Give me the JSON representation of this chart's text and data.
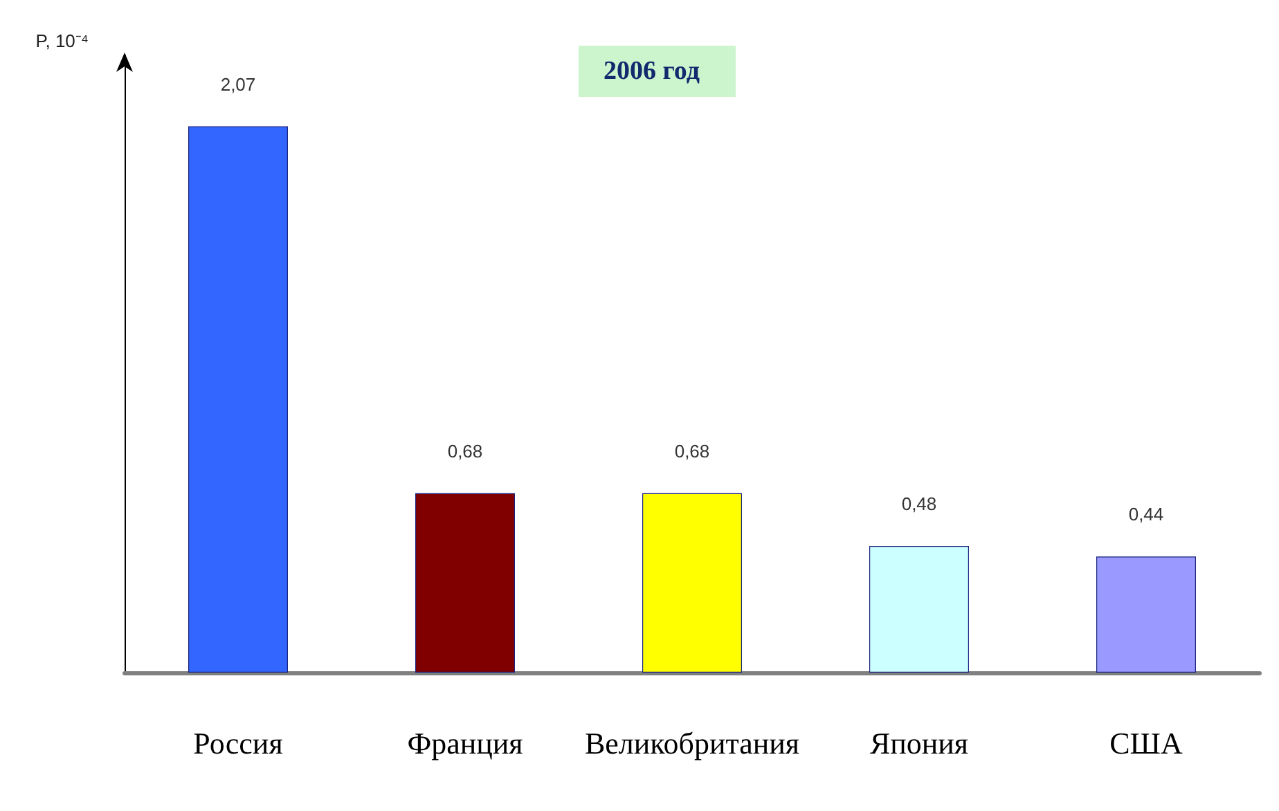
{
  "chart_data": {
    "type": "bar",
    "title": "2006 год",
    "ylabel": "P, 10⁻⁴",
    "categories": [
      "Россия",
      "Франция",
      "Великобритания",
      "Япония",
      "США"
    ],
    "values": [
      2.07,
      0.68,
      0.68,
      0.48,
      0.44
    ],
    "colors": [
      "#3366ff",
      "#800000",
      "#ffff00",
      "#ccffff",
      "#9999ff"
    ],
    "value_labels": [
      "2,07",
      "0,68",
      "0,68",
      "0,48",
      "0,44"
    ],
    "tick_labels": "x"
  }
}
